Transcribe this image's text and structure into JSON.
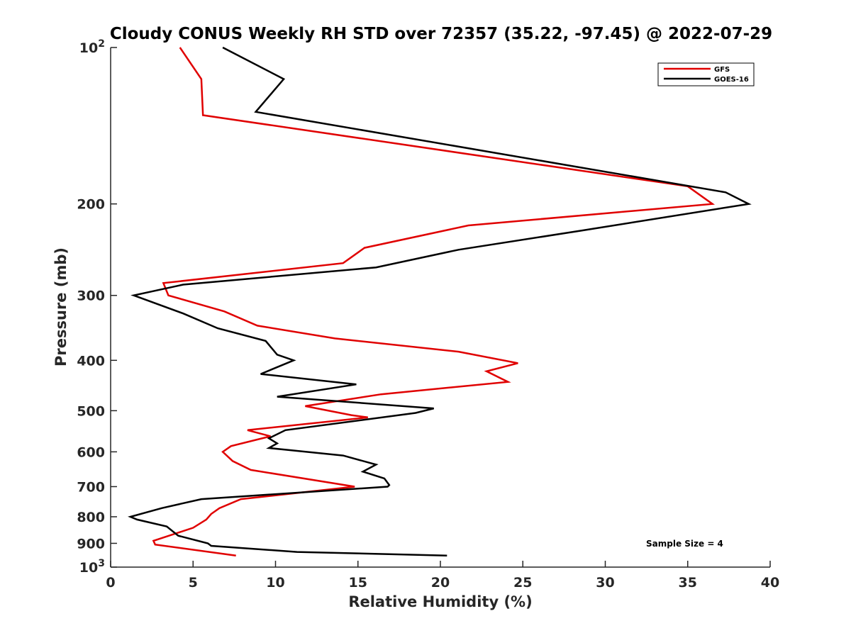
{
  "chart_data": {
    "type": "line",
    "title": "Cloudy CONUS Weekly RH STD over 72357 (35.22, -97.45) @ 2022-07-29",
    "xlabel": "Relative Humidity (%)",
    "ylabel": "Pressure (mb)",
    "xlim": [
      0,
      40
    ],
    "ylim": [
      100,
      1000
    ],
    "y_scale": "log",
    "y_reversed": true,
    "grid": false,
    "legend_position": "top-right",
    "x_ticks": [
      0,
      5,
      10,
      15,
      20,
      25,
      30,
      35,
      40
    ],
    "x_tick_labels": [
      "0",
      "5",
      "10",
      "15",
      "20",
      "25",
      "30",
      "35",
      "40"
    ],
    "y_ticks": [
      100,
      200,
      300,
      400,
      500,
      600,
      700,
      800,
      900,
      1000
    ],
    "y_tick_labels": [
      {
        "base": "10",
        "exp": "2"
      },
      {
        "base": "200",
        "exp": ""
      },
      {
        "base": "300",
        "exp": ""
      },
      {
        "base": "400",
        "exp": ""
      },
      {
        "base": "500",
        "exp": ""
      },
      {
        "base": "600",
        "exp": ""
      },
      {
        "base": "700",
        "exp": ""
      },
      {
        "base": "800",
        "exp": ""
      },
      {
        "base": "900",
        "exp": ""
      },
      {
        "base": "10",
        "exp": "3"
      }
    ],
    "series": [
      {
        "name": "GFS",
        "color": "#e00000",
        "points": [
          [
            4.2,
            100
          ],
          [
            5.5,
            115
          ],
          [
            5.6,
            135
          ],
          [
            35.0,
            185
          ],
          [
            36.5,
            200
          ],
          [
            21.7,
            220
          ],
          [
            15.4,
            243
          ],
          [
            14.1,
            260
          ],
          [
            3.2,
            284
          ],
          [
            3.5,
            300
          ],
          [
            6.9,
            322
          ],
          [
            8.9,
            343
          ],
          [
            13.6,
            363
          ],
          [
            21.1,
            385
          ],
          [
            24.7,
            405
          ],
          [
            22.8,
            420
          ],
          [
            24.1,
            440
          ],
          [
            16.4,
            465
          ],
          [
            11.8,
            490
          ],
          [
            14.6,
            510
          ],
          [
            15.6,
            515
          ],
          [
            8.3,
            545
          ],
          [
            9.7,
            560
          ],
          [
            7.3,
            585
          ],
          [
            6.8,
            600
          ],
          [
            7.4,
            625
          ],
          [
            8.5,
            650
          ],
          [
            14.8,
            700
          ],
          [
            7.9,
            740
          ],
          [
            6.6,
            770
          ],
          [
            6.1,
            790
          ],
          [
            5.8,
            810
          ],
          [
            5.0,
            840
          ],
          [
            2.6,
            890
          ],
          [
            2.7,
            905
          ],
          [
            7.6,
            950
          ]
        ]
      },
      {
        "name": "GOES-16",
        "color": "#000000",
        "points": [
          [
            6.8,
            100
          ],
          [
            10.5,
            115
          ],
          [
            8.8,
            133
          ],
          [
            37.3,
            190
          ],
          [
            38.7,
            200
          ],
          [
            28.6,
            225
          ],
          [
            21.1,
            245
          ],
          [
            16.1,
            265
          ],
          [
            4.4,
            286
          ],
          [
            1.4,
            300
          ],
          [
            4.4,
            325
          ],
          [
            6.5,
            347
          ],
          [
            9.4,
            367
          ],
          [
            10.1,
            390
          ],
          [
            11.1,
            400
          ],
          [
            9.1,
            425
          ],
          [
            14.9,
            445
          ],
          [
            10.1,
            470
          ],
          [
            19.6,
            495
          ],
          [
            18.5,
            505
          ],
          [
            10.6,
            545
          ],
          [
            9.6,
            565
          ],
          [
            10.1,
            578
          ],
          [
            9.6,
            590
          ],
          [
            14.1,
            610
          ],
          [
            16.1,
            635
          ],
          [
            15.3,
            655
          ],
          [
            16.6,
            675
          ],
          [
            16.9,
            695
          ],
          [
            16.8,
            700
          ],
          [
            5.5,
            740
          ],
          [
            3.1,
            770
          ],
          [
            1.2,
            800
          ],
          [
            1.6,
            810
          ],
          [
            3.4,
            835
          ],
          [
            4.1,
            870
          ],
          [
            5.9,
            900
          ],
          [
            6.1,
            910
          ],
          [
            11.3,
            935
          ],
          [
            20.4,
            950
          ]
        ]
      }
    ],
    "annotations": [
      {
        "text": "Sample Size = 4"
      }
    ]
  }
}
